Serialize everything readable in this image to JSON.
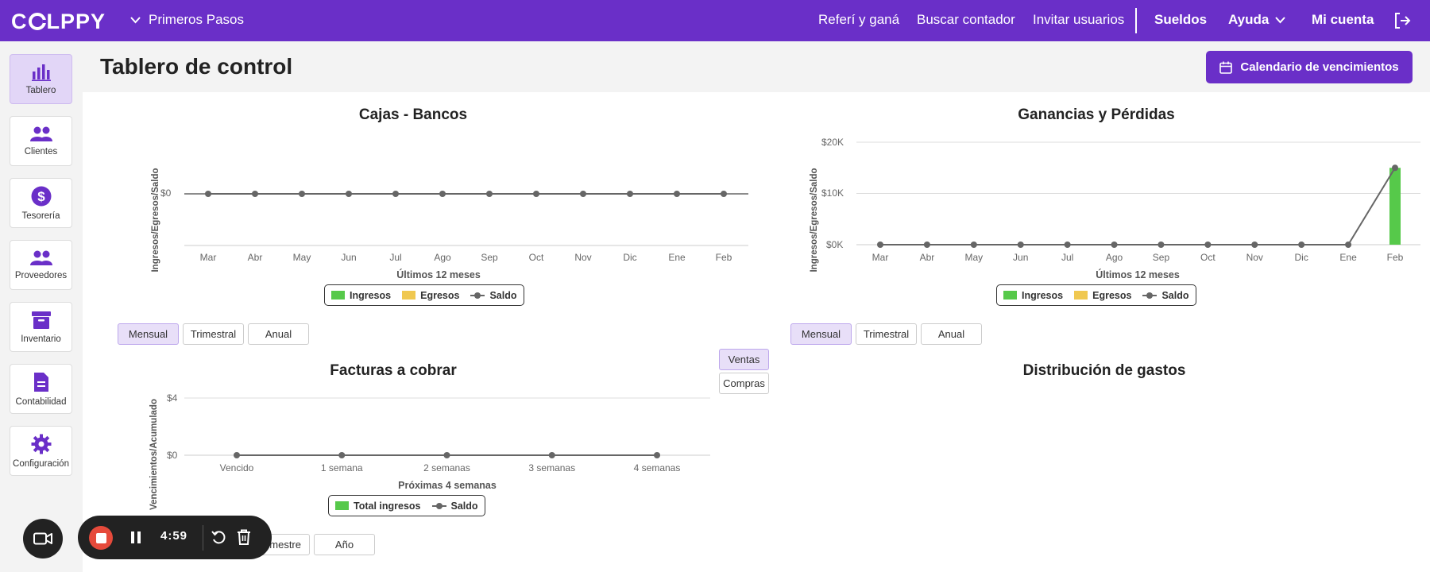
{
  "topbar": {
    "logo": "COLPPY",
    "primeros_pasos": "Primeros Pasos",
    "referi": "Referí y ganá",
    "buscar_contador": "Buscar contador",
    "invitar": "Invitar usuarios",
    "sueldos": "Sueldos",
    "ayuda": "Ayuda",
    "mi_cuenta": "Mi cuenta"
  },
  "sidebar": {
    "items": [
      {
        "label": "Tablero",
        "icon": "bar-chart-icon"
      },
      {
        "label": "Clientes",
        "icon": "users-icon"
      },
      {
        "label": "Tesorería",
        "icon": "dollar-icon"
      },
      {
        "label": "Proveedores",
        "icon": "users-icon"
      },
      {
        "label": "Inventario",
        "icon": "archive-icon"
      },
      {
        "label": "Contabilidad",
        "icon": "document-icon"
      },
      {
        "label": "Configuración",
        "icon": "gear-icon"
      }
    ]
  },
  "header": {
    "title": "Tablero de control",
    "calendar_button": "Calendario de vencimientos"
  },
  "colors": {
    "brand": "#6a2fc8",
    "ingresos": "#56c94a",
    "egresos": "#f0c850",
    "saldo": "#666666"
  },
  "periods": {
    "mensual": "Mensual",
    "trimestral": "Trimestral",
    "anual": "Anual"
  },
  "facturas_tabs": {
    "ventas": "Ventas",
    "compras": "Compras"
  },
  "facturas_periods": {
    "trimestre": "rimestre",
    "anio": "Año"
  },
  "recorder": {
    "timer": "4:59"
  },
  "chart_data": [
    {
      "type": "line",
      "title": "Cajas - Bancos",
      "ylabel": "Ingresos/Egresos/Saldo",
      "xlabel": "Últimos 12 meses",
      "categories": [
        "Mar",
        "Abr",
        "May",
        "Jun",
        "Jul",
        "Ago",
        "Sep",
        "Oct",
        "Nov",
        "Dic",
        "Ene",
        "Feb"
      ],
      "yticks": [
        "$0"
      ],
      "legend": [
        "Ingresos",
        "Egresos",
        "Saldo"
      ],
      "series": [
        {
          "name": "Ingresos",
          "type": "bar",
          "values": [
            0,
            0,
            0,
            0,
            0,
            0,
            0,
            0,
            0,
            0,
            0,
            0
          ]
        },
        {
          "name": "Egresos",
          "type": "bar",
          "values": [
            0,
            0,
            0,
            0,
            0,
            0,
            0,
            0,
            0,
            0,
            0,
            0
          ]
        },
        {
          "name": "Saldo",
          "type": "line",
          "values": [
            0,
            0,
            0,
            0,
            0,
            0,
            0,
            0,
            0,
            0,
            0,
            0
          ]
        }
      ]
    },
    {
      "type": "bar",
      "title": "Ganancias y Pérdidas",
      "ylabel": "Ingresos/Egresos/Saldo",
      "xlabel": "Últimos 12 meses",
      "categories": [
        "Mar",
        "Abr",
        "May",
        "Jun",
        "Jul",
        "Ago",
        "Sep",
        "Oct",
        "Nov",
        "Dic",
        "Ene",
        "Feb"
      ],
      "yticks": [
        "$0K",
        "$10K",
        "$20K"
      ],
      "ylim": [
        0,
        20000
      ],
      "legend": [
        "Ingresos",
        "Egresos",
        "Saldo"
      ],
      "series": [
        {
          "name": "Ingresos",
          "type": "bar",
          "values": [
            0,
            0,
            0,
            0,
            0,
            0,
            0,
            0,
            0,
            0,
            0,
            15000
          ]
        },
        {
          "name": "Egresos",
          "type": "bar",
          "values": [
            0,
            0,
            0,
            0,
            0,
            0,
            0,
            0,
            0,
            0,
            0,
            0
          ]
        },
        {
          "name": "Saldo",
          "type": "line",
          "values": [
            0,
            0,
            0,
            0,
            0,
            0,
            0,
            0,
            0,
            0,
            0,
            15000
          ]
        }
      ]
    },
    {
      "type": "line",
      "title": "Facturas a cobrar",
      "ylabel": "Vencimientos/Acumulado",
      "xlabel": "Próximas 4 semanas",
      "categories": [
        "Vencido",
        "1 semana",
        "2 semanas",
        "3 semanas",
        "4 semanas"
      ],
      "yticks": [
        "$0",
        "$4"
      ],
      "ylim": [
        0,
        4
      ],
      "legend": [
        "Total ingresos",
        "Saldo"
      ],
      "series": [
        {
          "name": "Total ingresos",
          "type": "bar",
          "values": [
            0,
            0,
            0,
            0,
            0
          ]
        },
        {
          "name": "Saldo",
          "type": "line",
          "values": [
            0,
            0,
            0,
            0,
            0
          ]
        }
      ]
    },
    {
      "type": "pie",
      "title": "Distribución de gastos",
      "values": []
    }
  ]
}
